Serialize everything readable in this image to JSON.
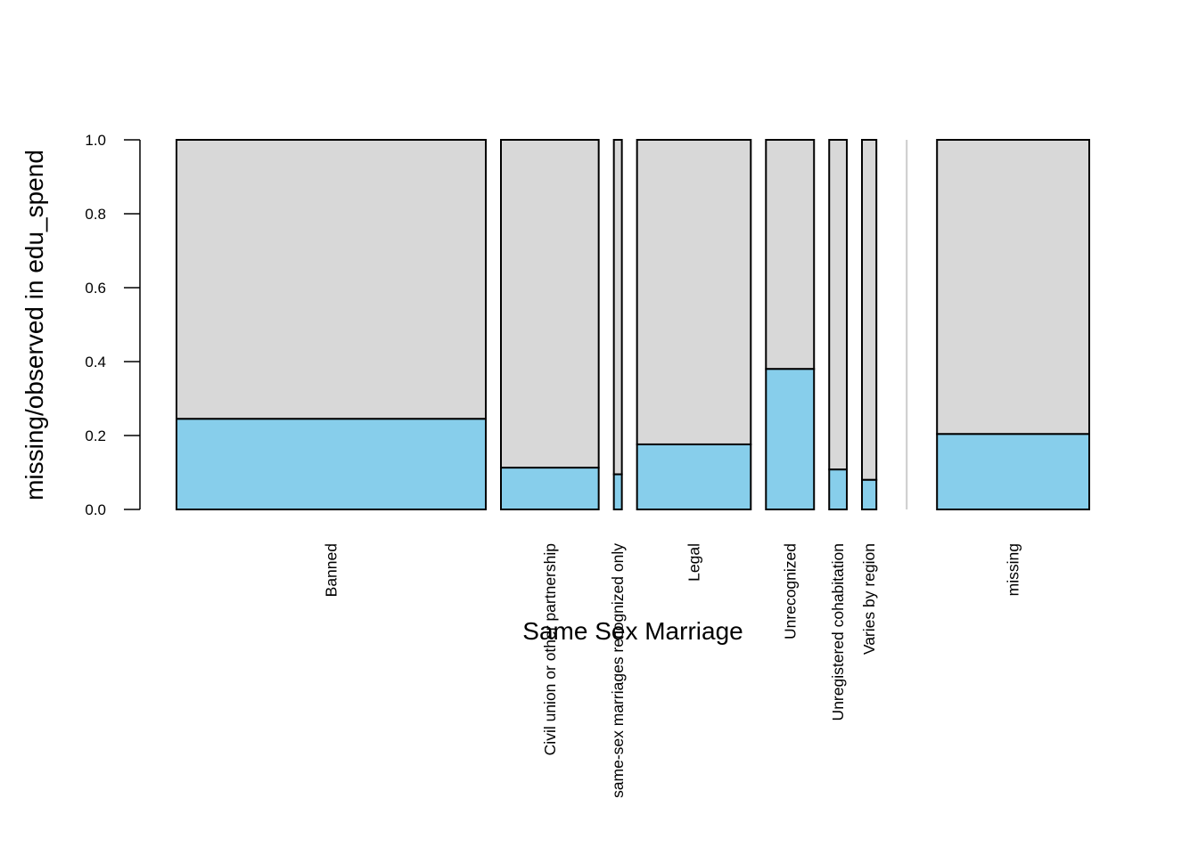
{
  "chart_data": {
    "type": "bar",
    "xlabel": "Same Sex Marriage",
    "ylabel": "missing/observed in edu_spend",
    "ylim": [
      0,
      1
    ],
    "yticks": [
      "0.0",
      "0.2",
      "0.4",
      "0.6",
      "0.8",
      "1.0"
    ],
    "categories": [
      "Banned",
      "Civil union or other partnership",
      "same-sex marriages recognized only",
      "Legal",
      "Unrecognized",
      "Unregistered cohabitation",
      "Varies by region",
      "missing"
    ],
    "relative_widths": [
      0.386,
      0.122,
      0.01,
      0.142,
      0.06,
      0.022,
      0.018,
      0.19
    ],
    "series": [
      {
        "name": "missing",
        "values": [
          0.245,
          0.113,
          0.095,
          0.176,
          0.38,
          0.108,
          0.08,
          0.204
        ]
      },
      {
        "name": "observed",
        "values": [
          0.755,
          0.887,
          0.905,
          0.824,
          0.62,
          0.892,
          0.92,
          0.796
        ]
      }
    ],
    "colors": {
      "missing": "#87CEEB",
      "observed": "#D8D8D8",
      "separator": "#cccccc",
      "border": "#000000"
    }
  }
}
